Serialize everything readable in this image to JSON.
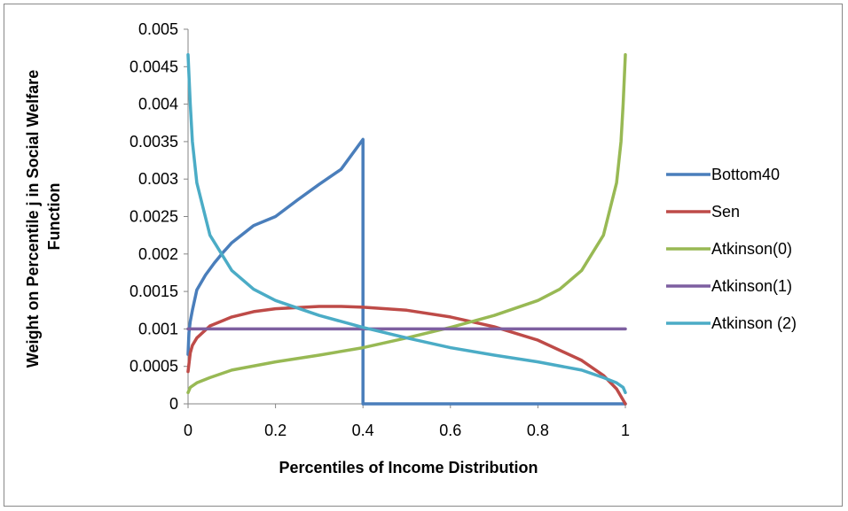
{
  "chart_data": {
    "type": "line",
    "title": "",
    "xlabel": "Percentiles of Income Distribution",
    "ylabel_lines": [
      "Weight on Percentile j in Social Welfare",
      "Function"
    ],
    "xlim": [
      0,
      1
    ],
    "ylim": [
      0,
      0.005
    ],
    "x_ticks": [
      "0",
      "0.2",
      "0.4",
      "0.6",
      "0.8",
      "1"
    ],
    "y_ticks": [
      "0",
      "0.0005",
      "0.001",
      "0.0015",
      "0.002",
      "0.0025",
      "0.003",
      "0.0035",
      "0.004",
      "0.0045",
      "0.005"
    ],
    "grid": false,
    "legend_position": "right",
    "series": [
      {
        "name": "Bottom40",
        "color": "#4a7ebb",
        "points": [
          [
            0,
            0.00066
          ],
          [
            0.002,
            0.00095
          ],
          [
            0.005,
            0.0011
          ],
          [
            0.01,
            0.00125
          ],
          [
            0.02,
            0.00152
          ],
          [
            0.04,
            0.00172
          ],
          [
            0.06,
            0.00188
          ],
          [
            0.08,
            0.00202
          ],
          [
            0.1,
            0.00215
          ],
          [
            0.15,
            0.00238
          ],
          [
            0.2,
            0.0025
          ],
          [
            0.25,
            0.00272
          ],
          [
            0.3,
            0.00293
          ],
          [
            0.35,
            0.00313
          ],
          [
            0.4,
            0.00353
          ],
          [
            0.4,
            0
          ],
          [
            1,
            0
          ]
        ]
      },
      {
        "name": "Sen",
        "color": "#be4b48",
        "points": [
          [
            0,
            0.00043
          ],
          [
            0.005,
            0.00068
          ],
          [
            0.01,
            0.00078
          ],
          [
            0.02,
            0.00088
          ],
          [
            0.05,
            0.00104
          ],
          [
            0.1,
            0.00116
          ],
          [
            0.15,
            0.00123
          ],
          [
            0.2,
            0.00127
          ],
          [
            0.3,
            0.0013
          ],
          [
            0.35,
            0.0013
          ],
          [
            0.4,
            0.00129
          ],
          [
            0.5,
            0.00125
          ],
          [
            0.6,
            0.00116
          ],
          [
            0.7,
            0.00103
          ],
          [
            0.8,
            0.00085
          ],
          [
            0.9,
            0.00058
          ],
          [
            0.95,
            0.00038
          ],
          [
            0.98,
            0.0002
          ],
          [
            1,
            0
          ]
        ]
      },
      {
        "name": "Atkinson(0)",
        "color": "#98b954",
        "points": [
          [
            0,
            0.00015
          ],
          [
            0.005,
            0.00022
          ],
          [
            0.02,
            0.00028
          ],
          [
            0.05,
            0.00035
          ],
          [
            0.1,
            0.00045
          ],
          [
            0.2,
            0.00056
          ],
          [
            0.3,
            0.00065
          ],
          [
            0.4,
            0.00075
          ],
          [
            0.5,
            0.00088
          ],
          [
            0.6,
            0.00102
          ],
          [
            0.7,
            0.00118
          ],
          [
            0.8,
            0.00138
          ],
          [
            0.85,
            0.00153
          ],
          [
            0.9,
            0.00178
          ],
          [
            0.95,
            0.00225
          ],
          [
            0.98,
            0.00295
          ],
          [
            0.99,
            0.0035
          ],
          [
            0.995,
            0.004
          ],
          [
            1,
            0.00466
          ]
        ]
      },
      {
        "name": "Atkinson(1)",
        "color": "#7d5fa0",
        "points": [
          [
            0,
            0.001
          ],
          [
            1,
            0.001
          ]
        ]
      },
      {
        "name": "Atkinson (2)",
        "color": "#4bacc6",
        "points": [
          [
            0,
            0.00466
          ],
          [
            0.005,
            0.004
          ],
          [
            0.01,
            0.0035
          ],
          [
            0.02,
            0.00295
          ],
          [
            0.05,
            0.00225
          ],
          [
            0.1,
            0.00178
          ],
          [
            0.15,
            0.00153
          ],
          [
            0.2,
            0.00138
          ],
          [
            0.3,
            0.00118
          ],
          [
            0.4,
            0.00102
          ],
          [
            0.5,
            0.00088
          ],
          [
            0.6,
            0.00075
          ],
          [
            0.7,
            0.00065
          ],
          [
            0.8,
            0.00056
          ],
          [
            0.9,
            0.00045
          ],
          [
            0.95,
            0.00035
          ],
          [
            0.98,
            0.00028
          ],
          [
            0.995,
            0.00022
          ],
          [
            1,
            0.00015
          ]
        ]
      }
    ]
  }
}
